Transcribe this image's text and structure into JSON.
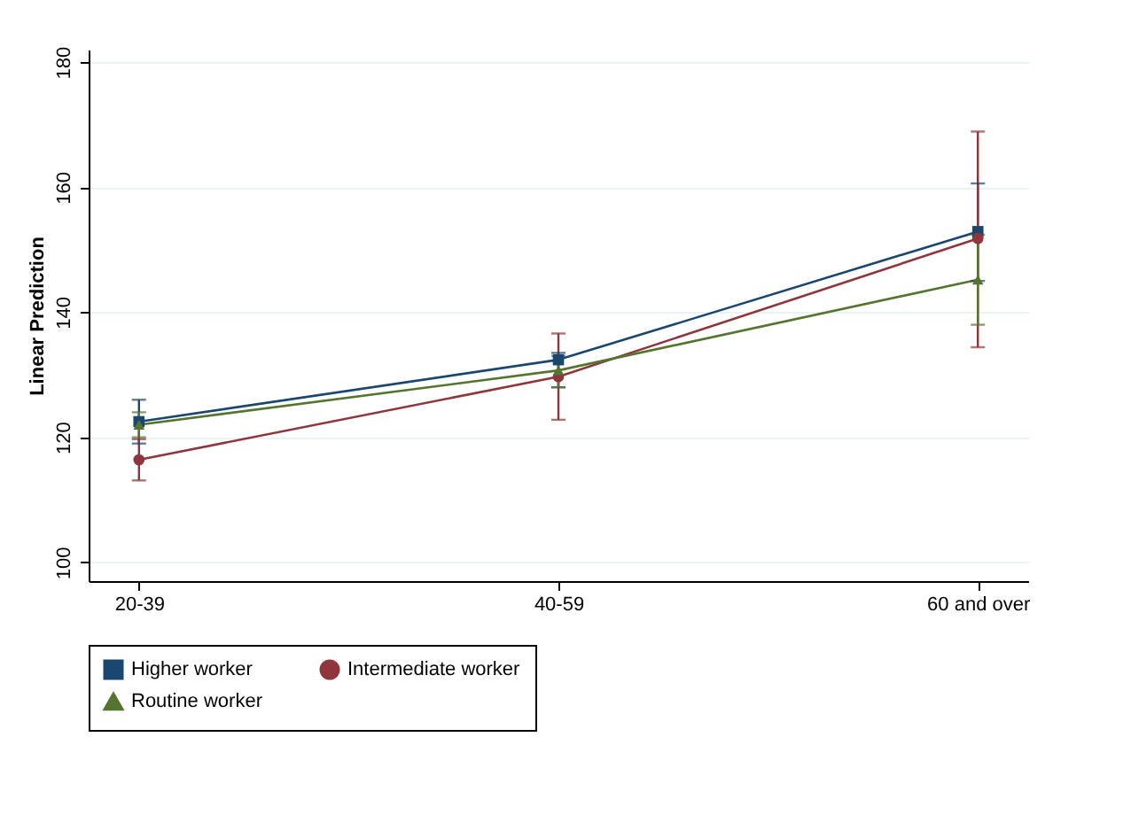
{
  "chart_data": {
    "type": "line",
    "ylabel": "Linear Prediction",
    "categories": [
      "20-39",
      "40-59",
      "60 and over"
    ],
    "series": [
      {
        "name": "Higher worker",
        "color": "#1a476f",
        "marker": "square",
        "values": [
          122.5,
          132.4,
          152.9
        ],
        "errors": [
          [
            119,
            126
          ],
          [
            128,
            133.5
          ],
          [
            145,
            160.6
          ]
        ]
      },
      {
        "name": "Intermediate worker",
        "color": "#90353b",
        "marker": "circle",
        "values": [
          116.4,
          129.7,
          151.8
        ],
        "errors": [
          [
            113.1,
            119.7
          ],
          [
            122.8,
            136.6
          ],
          [
            134.4,
            168.9
          ]
        ]
      },
      {
        "name": "Routine worker",
        "color": "#55752f",
        "marker": "triangle",
        "values": [
          122,
          130.7,
          145.2
        ],
        "errors": [
          [
            120,
            124
          ],
          [
            128,
            133
          ],
          [
            138,
            152.4
          ]
        ]
      }
    ],
    "ylim": [
      97,
      182
    ],
    "yticks": [
      100,
      120,
      140,
      160,
      180
    ],
    "grid": "y",
    "legend": "bottom"
  }
}
